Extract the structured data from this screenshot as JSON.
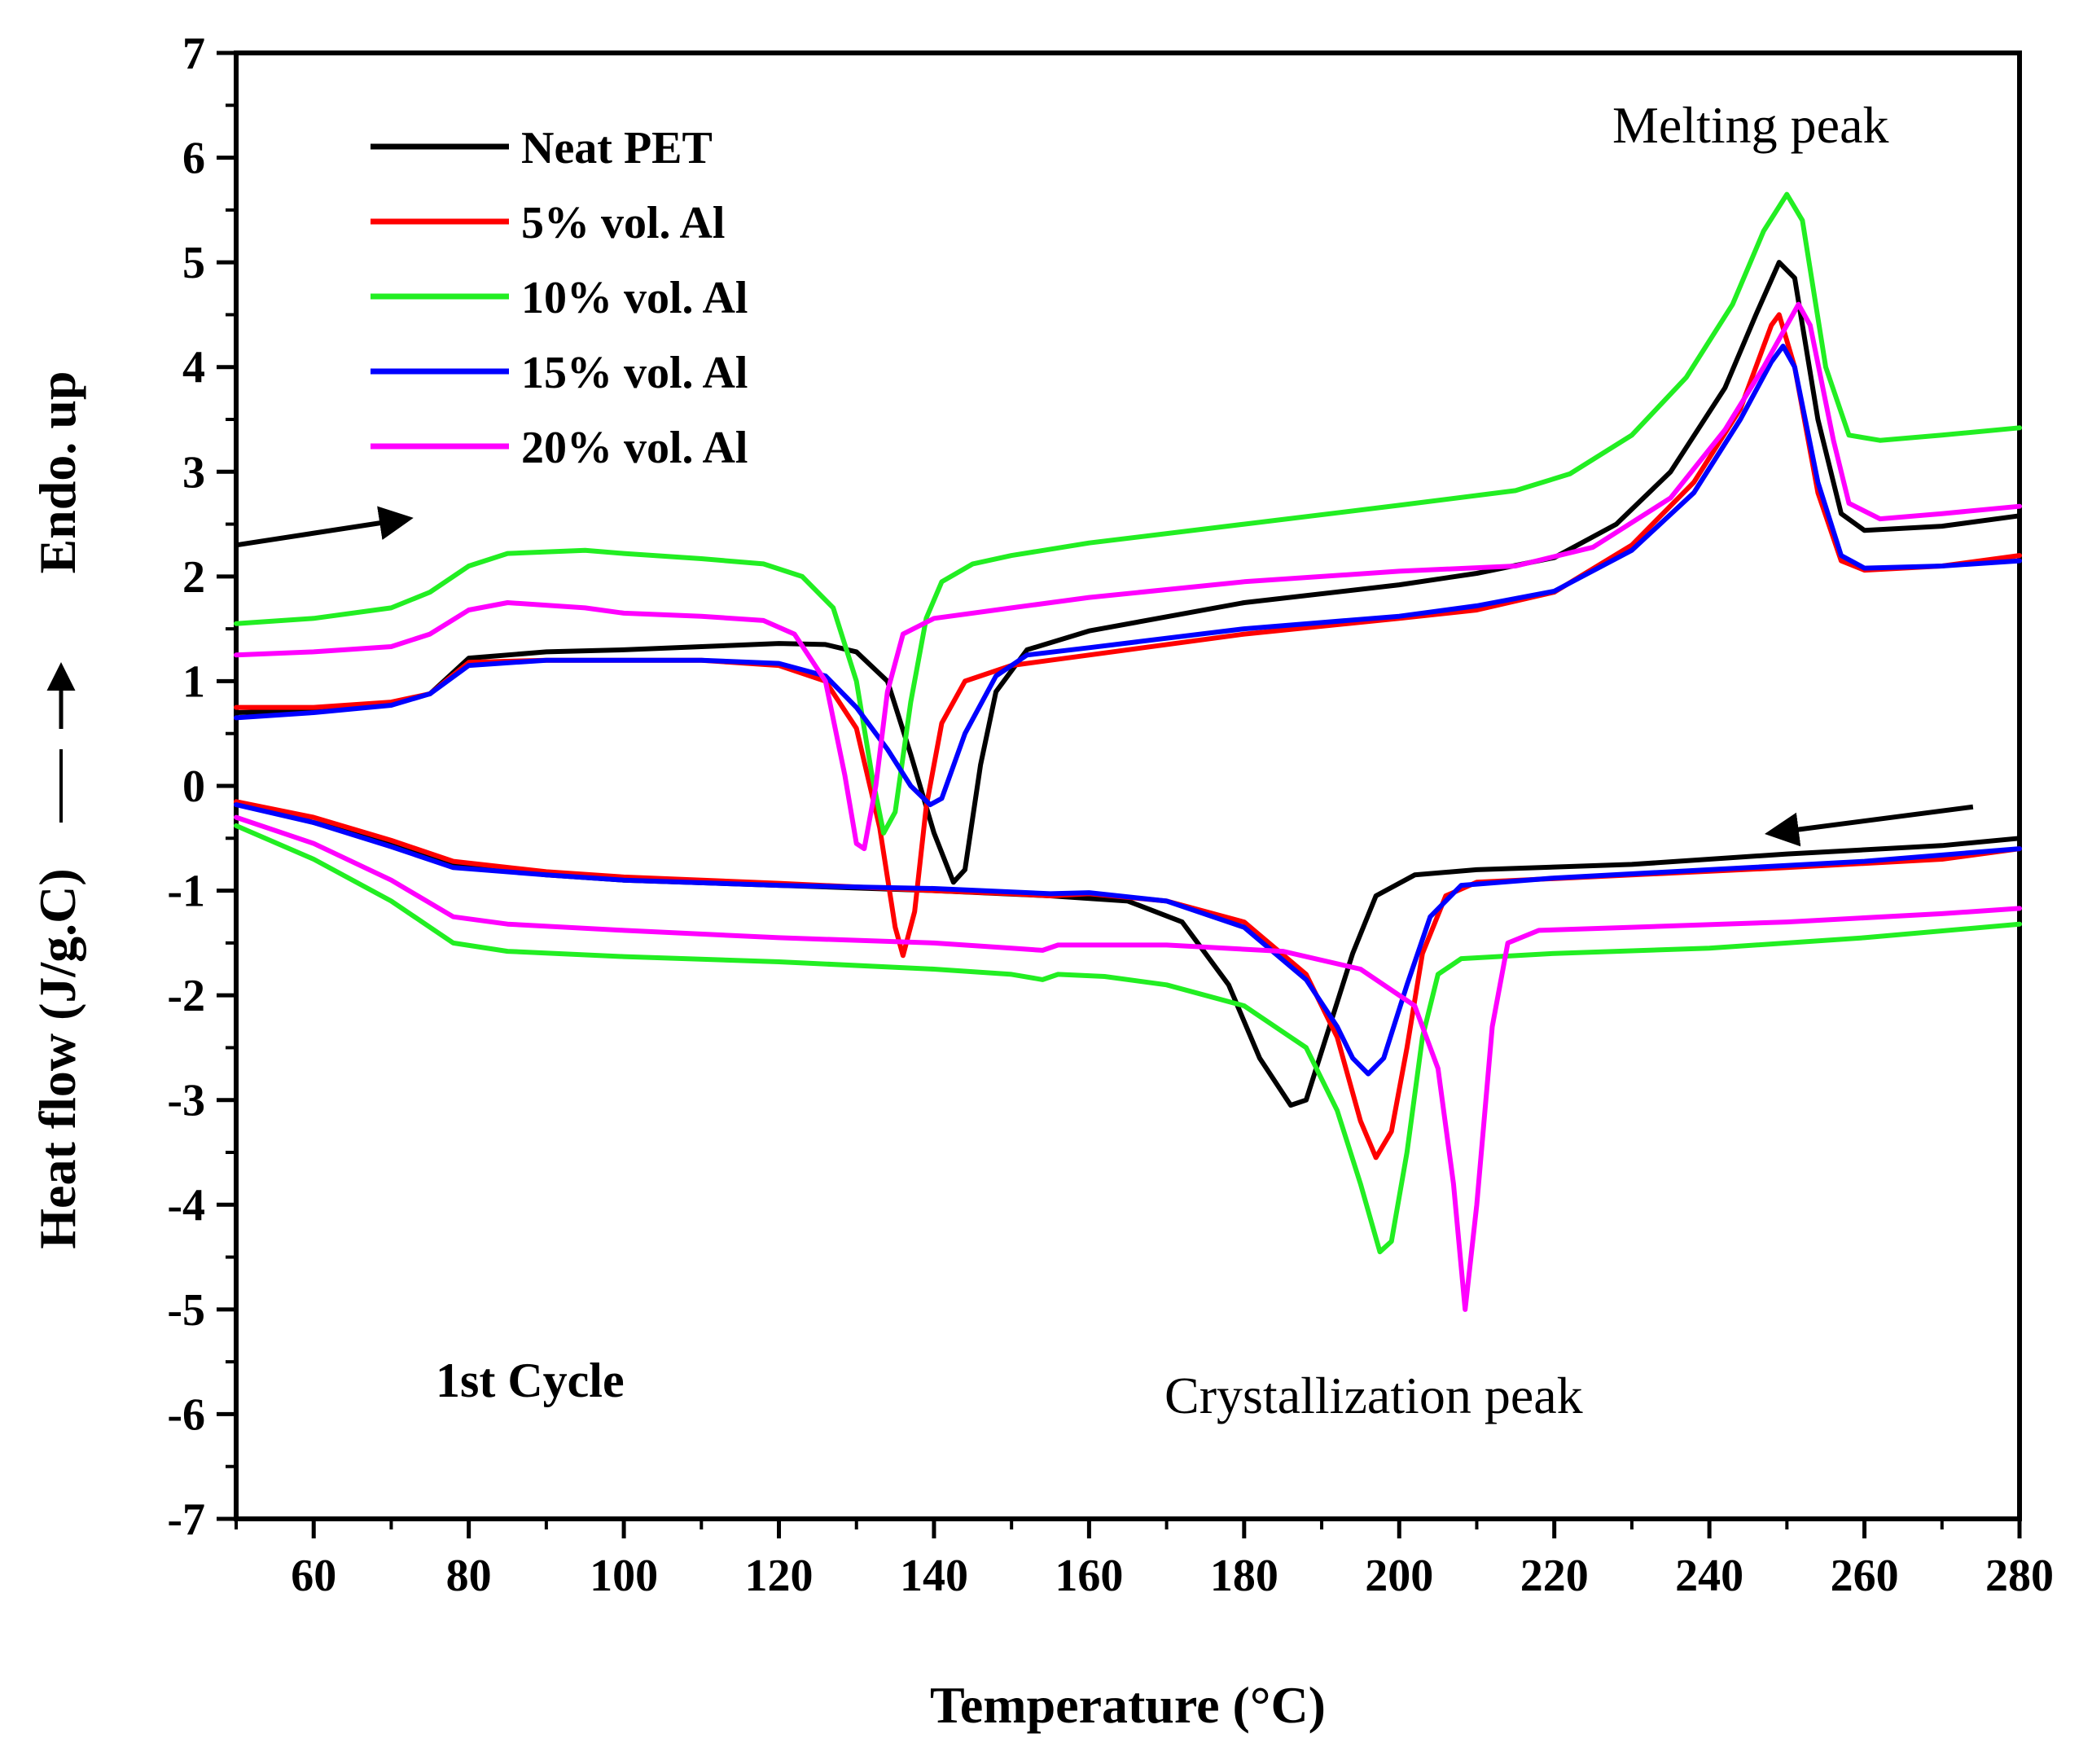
{
  "chart_data": {
    "type": "line",
    "title": "",
    "xlabel": "Temperature (°C)",
    "ylabel": "Heat flow (J/g.C)",
    "ylabel_extra": "Endo. up",
    "xlim": [
      50,
      280
    ],
    "ylim": [
      -7,
      7
    ],
    "x_ticks": [
      60,
      80,
      100,
      120,
      140,
      160,
      180,
      200,
      220,
      240,
      260,
      280
    ],
    "y_ticks": [
      -7,
      -6,
      -5,
      -4,
      -3,
      -2,
      -1,
      0,
      1,
      2,
      3,
      4,
      5,
      6,
      7
    ],
    "grid": false,
    "legend_position": "top-left",
    "annotations": {
      "melting": "Melting peak",
      "crystallization": "Crystallization peak",
      "cycle": "1st Cycle"
    },
    "arrows": [
      {
        "label": "heating",
        "from": [
          50,
          2.3
        ],
        "to": [
          72,
          2.55
        ]
      },
      {
        "label": "cooling",
        "from": [
          274,
          -0.2
        ],
        "to": [
          248,
          -0.45
        ]
      }
    ],
    "series": [
      {
        "name": "Neat PET",
        "color": "#000000",
        "heating": [
          [
            50,
            0.7
          ],
          [
            60,
            0.72
          ],
          [
            70,
            0.78
          ],
          [
            75,
            0.88
          ],
          [
            80,
            1.22
          ],
          [
            90,
            1.28
          ],
          [
            100,
            1.3
          ],
          [
            110,
            1.33
          ],
          [
            120,
            1.36
          ],
          [
            126,
            1.35
          ],
          [
            130,
            1.28
          ],
          [
            134,
            1.0
          ],
          [
            137,
            0.3
          ],
          [
            140,
            -0.45
          ],
          [
            142.5,
            -0.92
          ],
          [
            144,
            -0.8
          ],
          [
            146,
            0.2
          ],
          [
            148,
            0.9
          ],
          [
            152,
            1.3
          ],
          [
            160,
            1.48
          ],
          [
            180,
            1.75
          ],
          [
            200,
            1.92
          ],
          [
            210,
            2.03
          ],
          [
            220,
            2.18
          ],
          [
            228,
            2.5
          ],
          [
            235,
            3.0
          ],
          [
            242,
            3.8
          ],
          [
            246,
            4.5
          ],
          [
            249,
            5.0
          ],
          [
            251,
            4.85
          ],
          [
            254,
            3.5
          ],
          [
            257,
            2.6
          ],
          [
            260,
            2.44
          ],
          [
            270,
            2.48
          ],
          [
            280,
            2.58
          ]
        ],
        "cooling": [
          [
            50,
            -0.15
          ],
          [
            60,
            -0.35
          ],
          [
            70,
            -0.55
          ],
          [
            78,
            -0.75
          ],
          [
            90,
            -0.85
          ],
          [
            100,
            -0.9
          ],
          [
            120,
            -0.95
          ],
          [
            140,
            -1.0
          ],
          [
            155,
            -1.05
          ],
          [
            165,
            -1.1
          ],
          [
            172,
            -1.3
          ],
          [
            178,
            -1.9
          ],
          [
            182,
            -2.6
          ],
          [
            186,
            -3.05
          ],
          [
            188,
            -3.0
          ],
          [
            191,
            -2.3
          ],
          [
            194,
            -1.6
          ],
          [
            197,
            -1.05
          ],
          [
            202,
            -0.85
          ],
          [
            210,
            -0.8
          ],
          [
            230,
            -0.75
          ],
          [
            250,
            -0.65
          ],
          [
            270,
            -0.57
          ],
          [
            280,
            -0.5
          ]
        ]
      },
      {
        "name": "5% vol. Al",
        "color": "#ff0000",
        "heating": [
          [
            50,
            0.75
          ],
          [
            60,
            0.75
          ],
          [
            70,
            0.8
          ],
          [
            75,
            0.88
          ],
          [
            80,
            1.18
          ],
          [
            90,
            1.2
          ],
          [
            100,
            1.2
          ],
          [
            110,
            1.2
          ],
          [
            120,
            1.15
          ],
          [
            126,
            1.0
          ],
          [
            130,
            0.55
          ],
          [
            133,
            -0.4
          ],
          [
            135,
            -1.35
          ],
          [
            136,
            -1.62
          ],
          [
            137.5,
            -1.2
          ],
          [
            139,
            -0.2
          ],
          [
            141,
            0.6
          ],
          [
            144,
            1.0
          ],
          [
            150,
            1.15
          ],
          [
            160,
            1.25
          ],
          [
            180,
            1.45
          ],
          [
            200,
            1.6
          ],
          [
            210,
            1.68
          ],
          [
            220,
            1.85
          ],
          [
            230,
            2.3
          ],
          [
            238,
            2.9
          ],
          [
            244,
            3.6
          ],
          [
            248,
            4.4
          ],
          [
            249,
            4.5
          ],
          [
            251,
            4.0
          ],
          [
            254,
            2.8
          ],
          [
            257,
            2.15
          ],
          [
            260,
            2.06
          ],
          [
            270,
            2.1
          ],
          [
            280,
            2.2
          ]
        ],
        "cooling": [
          [
            50,
            -0.15
          ],
          [
            60,
            -0.3
          ],
          [
            70,
            -0.52
          ],
          [
            78,
            -0.72
          ],
          [
            90,
            -0.82
          ],
          [
            100,
            -0.87
          ],
          [
            120,
            -0.93
          ],
          [
            140,
            -1.0
          ],
          [
            150,
            -1.03
          ],
          [
            155,
            -1.05
          ],
          [
            160,
            -1.03
          ],
          [
            170,
            -1.1
          ],
          [
            180,
            -1.3
          ],
          [
            188,
            -1.8
          ],
          [
            192,
            -2.4
          ],
          [
            195,
            -3.2
          ],
          [
            197,
            -3.55
          ],
          [
            199,
            -3.3
          ],
          [
            201,
            -2.5
          ],
          [
            203,
            -1.6
          ],
          [
            206,
            -1.05
          ],
          [
            210,
            -0.92
          ],
          [
            230,
            -0.85
          ],
          [
            250,
            -0.78
          ],
          [
            270,
            -0.7
          ],
          [
            280,
            -0.6
          ]
        ]
      },
      {
        "name": "10% vol. Al",
        "color": "#22ee22",
        "heating": [
          [
            50,
            1.55
          ],
          [
            60,
            1.6
          ],
          [
            70,
            1.7
          ],
          [
            75,
            1.85
          ],
          [
            80,
            2.1
          ],
          [
            85,
            2.22
          ],
          [
            95,
            2.25
          ],
          [
            100,
            2.22
          ],
          [
            110,
            2.17
          ],
          [
            118,
            2.12
          ],
          [
            123,
            2.0
          ],
          [
            127,
            1.7
          ],
          [
            130,
            1.0
          ],
          [
            132,
            0.1
          ],
          [
            133.5,
            -0.45
          ],
          [
            135,
            -0.25
          ],
          [
            137,
            0.8
          ],
          [
            139,
            1.6
          ],
          [
            141,
            1.95
          ],
          [
            145,
            2.12
          ],
          [
            150,
            2.2
          ],
          [
            160,
            2.32
          ],
          [
            180,
            2.5
          ],
          [
            200,
            2.68
          ],
          [
            215,
            2.82
          ],
          [
            222,
            2.98
          ],
          [
            230,
            3.35
          ],
          [
            237,
            3.9
          ],
          [
            243,
            4.6
          ],
          [
            247,
            5.3
          ],
          [
            250,
            5.65
          ],
          [
            252,
            5.4
          ],
          [
            255,
            4.0
          ],
          [
            258,
            3.35
          ],
          [
            262,
            3.3
          ],
          [
            270,
            3.35
          ],
          [
            280,
            3.42
          ]
        ],
        "cooling": [
          [
            50,
            -0.38
          ],
          [
            60,
            -0.7
          ],
          [
            70,
            -1.1
          ],
          [
            78,
            -1.5
          ],
          [
            85,
            -1.58
          ],
          [
            100,
            -1.63
          ],
          [
            120,
            -1.68
          ],
          [
            140,
            -1.75
          ],
          [
            150,
            -1.8
          ],
          [
            154,
            -1.85
          ],
          [
            156,
            -1.8
          ],
          [
            162,
            -1.82
          ],
          [
            170,
            -1.9
          ],
          [
            180,
            -2.1
          ],
          [
            188,
            -2.5
          ],
          [
            192,
            -3.1
          ],
          [
            195,
            -3.8
          ],
          [
            197.5,
            -4.45
          ],
          [
            199,
            -4.35
          ],
          [
            201,
            -3.5
          ],
          [
            203,
            -2.4
          ],
          [
            205,
            -1.8
          ],
          [
            208,
            -1.65
          ],
          [
            220,
            -1.6
          ],
          [
            240,
            -1.55
          ],
          [
            260,
            -1.45
          ],
          [
            280,
            -1.32
          ]
        ]
      },
      {
        "name": "15% vol. Al",
        "color": "#0000ff",
        "heating": [
          [
            50,
            0.65
          ],
          [
            60,
            0.7
          ],
          [
            70,
            0.77
          ],
          [
            75,
            0.88
          ],
          [
            80,
            1.15
          ],
          [
            90,
            1.2
          ],
          [
            100,
            1.2
          ],
          [
            110,
            1.2
          ],
          [
            120,
            1.17
          ],
          [
            126,
            1.05
          ],
          [
            130,
            0.75
          ],
          [
            134,
            0.35
          ],
          [
            137,
            0.0
          ],
          [
            139.5,
            -0.18
          ],
          [
            141,
            -0.12
          ],
          [
            144,
            0.5
          ],
          [
            148,
            1.05
          ],
          [
            152,
            1.25
          ],
          [
            160,
            1.32
          ],
          [
            180,
            1.5
          ],
          [
            200,
            1.62
          ],
          [
            210,
            1.72
          ],
          [
            220,
            1.86
          ],
          [
            230,
            2.25
          ],
          [
            238,
            2.8
          ],
          [
            244,
            3.5
          ],
          [
            248,
            4.05
          ],
          [
            249.5,
            4.2
          ],
          [
            251,
            4.0
          ],
          [
            254,
            2.9
          ],
          [
            257,
            2.2
          ],
          [
            260,
            2.08
          ],
          [
            270,
            2.1
          ],
          [
            280,
            2.15
          ]
        ],
        "cooling": [
          [
            50,
            -0.18
          ],
          [
            60,
            -0.35
          ],
          [
            70,
            -0.58
          ],
          [
            78,
            -0.78
          ],
          [
            90,
            -0.85
          ],
          [
            100,
            -0.9
          ],
          [
            120,
            -0.95
          ],
          [
            140,
            -0.98
          ],
          [
            155,
            -1.03
          ],
          [
            160,
            -1.02
          ],
          [
            170,
            -1.1
          ],
          [
            180,
            -1.35
          ],
          [
            188,
            -1.85
          ],
          [
            192,
            -2.3
          ],
          [
            194,
            -2.6
          ],
          [
            196,
            -2.75
          ],
          [
            198,
            -2.6
          ],
          [
            201,
            -1.9
          ],
          [
            204,
            -1.25
          ],
          [
            208,
            -0.95
          ],
          [
            220,
            -0.88
          ],
          [
            240,
            -0.8
          ],
          [
            260,
            -0.72
          ],
          [
            280,
            -0.6
          ]
        ]
      },
      {
        "name": "20% vol. Al",
        "color": "#ff00ff",
        "heating": [
          [
            50,
            1.25
          ],
          [
            60,
            1.28
          ],
          [
            70,
            1.33
          ],
          [
            75,
            1.45
          ],
          [
            80,
            1.68
          ],
          [
            85,
            1.75
          ],
          [
            95,
            1.7
          ],
          [
            100,
            1.65
          ],
          [
            110,
            1.62
          ],
          [
            118,
            1.58
          ],
          [
            122,
            1.45
          ],
          [
            126,
            1.0
          ],
          [
            128.5,
            0.1
          ],
          [
            130,
            -0.55
          ],
          [
            131,
            -0.6
          ],
          [
            132.5,
            0.0
          ],
          [
            134,
            0.9
          ],
          [
            136,
            1.45
          ],
          [
            140,
            1.6
          ],
          [
            150,
            1.7
          ],
          [
            160,
            1.8
          ],
          [
            180,
            1.95
          ],
          [
            200,
            2.05
          ],
          [
            215,
            2.1
          ],
          [
            225,
            2.28
          ],
          [
            235,
            2.75
          ],
          [
            242,
            3.4
          ],
          [
            247,
            4.0
          ],
          [
            250,
            4.4
          ],
          [
            251.5,
            4.6
          ],
          [
            253,
            4.4
          ],
          [
            256,
            3.3
          ],
          [
            258,
            2.7
          ],
          [
            262,
            2.55
          ],
          [
            270,
            2.6
          ],
          [
            280,
            2.67
          ]
        ],
        "cooling": [
          [
            50,
            -0.3
          ],
          [
            60,
            -0.55
          ],
          [
            70,
            -0.9
          ],
          [
            78,
            -1.25
          ],
          [
            85,
            -1.32
          ],
          [
            100,
            -1.38
          ],
          [
            120,
            -1.45
          ],
          [
            140,
            -1.5
          ],
          [
            150,
            -1.55
          ],
          [
            154,
            -1.57
          ],
          [
            156,
            -1.52
          ],
          [
            170,
            -1.52
          ],
          [
            185,
            -1.58
          ],
          [
            195,
            -1.75
          ],
          [
            202,
            -2.1
          ],
          [
            205,
            -2.7
          ],
          [
            207,
            -3.8
          ],
          [
            208.5,
            -5.0
          ],
          [
            210,
            -4.0
          ],
          [
            212,
            -2.3
          ],
          [
            214,
            -1.5
          ],
          [
            218,
            -1.38
          ],
          [
            230,
            -1.35
          ],
          [
            250,
            -1.3
          ],
          [
            270,
            -1.22
          ],
          [
            280,
            -1.17
          ]
        ]
      }
    ]
  }
}
